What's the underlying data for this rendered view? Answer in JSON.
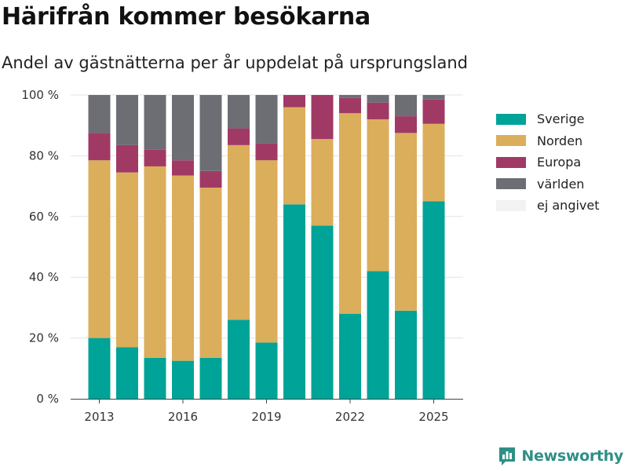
{
  "header": {
    "title": "Härifrån kommer besökarna",
    "subtitle": "Andel av gästnätterna per år uppdelat på ursprungsland"
  },
  "brand": {
    "name": "Newsworthy",
    "color": "#2f8f86",
    "icon": "bar-chart-logo-icon"
  },
  "chart_data": {
    "type": "bar",
    "stacked": true,
    "categories": [
      "2013",
      "2014",
      "2015",
      "2016",
      "2017",
      "2018",
      "2019",
      "2020",
      "2021",
      "2022",
      "2023",
      "2024",
      "2025"
    ],
    "x_tick_labels": [
      "2013",
      "2016",
      "2019",
      "2022",
      "2025"
    ],
    "y_tick_labels": [
      "0 %",
      "20 %",
      "40 %",
      "60 %",
      "80 %",
      "100 %"
    ],
    "ylim": [
      0,
      100
    ],
    "grid": true,
    "legend_position": "right",
    "series": [
      {
        "name": "Sverige",
        "color": "#00a397",
        "values": [
          20,
          17,
          13.5,
          12.5,
          13.5,
          26,
          18.5,
          64,
          57,
          28,
          42,
          29,
          65
        ]
      },
      {
        "name": "Norden",
        "color": "#dbae5b",
        "values": [
          58.5,
          57.5,
          63,
          61,
          56,
          57.5,
          60,
          32,
          28.5,
          66,
          50,
          58.5,
          25.5
        ]
      },
      {
        "name": "Europa",
        "color": "#a03a65",
        "values": [
          9,
          9,
          5.5,
          5,
          5.5,
          5.5,
          5.5,
          4,
          14.5,
          5,
          5.5,
          5.5,
          8
        ]
      },
      {
        "name": "världen",
        "color": "#6d6e74",
        "values": [
          12.5,
          16.5,
          18,
          21.5,
          25,
          11,
          16,
          0,
          0,
          1,
          2.5,
          7,
          1.5
        ]
      },
      {
        "name": "ej angivet",
        "color": "#f2f2f2",
        "values": [
          0,
          0,
          0,
          0,
          0,
          0,
          0,
          0,
          0,
          0,
          0,
          0,
          0
        ]
      }
    ]
  }
}
